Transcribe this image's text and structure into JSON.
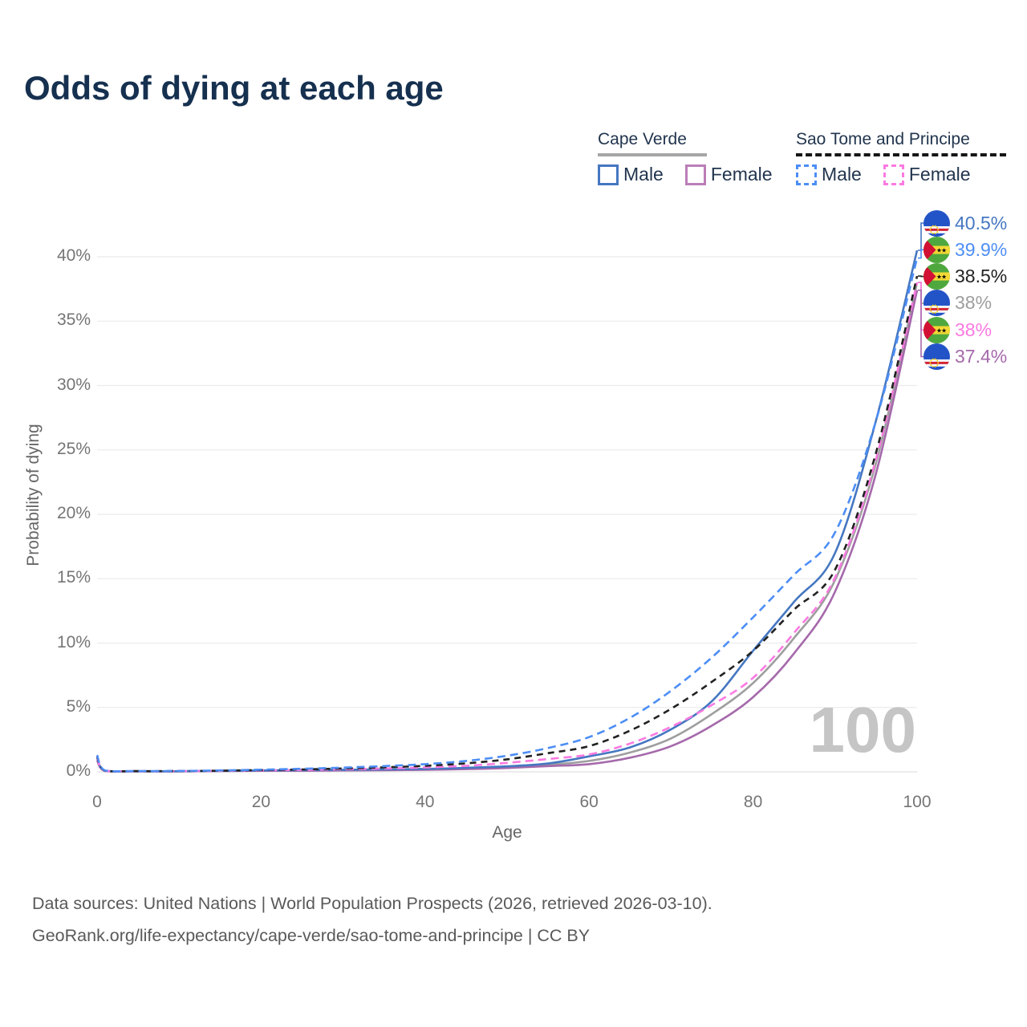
{
  "title": "Odds of dying at each age",
  "watermark": "100",
  "y_axis": {
    "title": "Probability of dying",
    "ticks": [
      "0%",
      "5%",
      "10%",
      "15%",
      "20%",
      "25%",
      "30%",
      "35%",
      "40%"
    ]
  },
  "x_axis": {
    "title": "Age",
    "ticks": [
      "0",
      "20",
      "40",
      "60",
      "80",
      "100"
    ]
  },
  "legend": {
    "groups": [
      {
        "name": "Cape Verde",
        "line_style": "solid",
        "underline_color": "#a6a6a6",
        "items": [
          {
            "label": "Male",
            "box_color": "#4577c1",
            "box_style": "solid"
          },
          {
            "label": "Female",
            "box_color": "#bb7eb8",
            "box_style": "solid"
          }
        ]
      },
      {
        "name": "Sao Tome and Principe",
        "line_style": "dashed",
        "underline_color": "#161616",
        "items": [
          {
            "label": "Male",
            "box_color": "#4d8ef5",
            "box_style": "dashed"
          },
          {
            "label": "Female",
            "box_color": "#fb7ae1",
            "box_style": "dashed"
          }
        ]
      }
    ]
  },
  "end_labels": [
    {
      "series": "cape_verde_male",
      "flag": "cape-verde",
      "value": "40.5%",
      "color": "#4577c1"
    },
    {
      "series": "sao_tome_male",
      "flag": "sao-tome",
      "value": "39.9%",
      "color": "#4d8ef5"
    },
    {
      "series": "sao_tome_total",
      "flag": "sao-tome",
      "value": "38.5%",
      "color": "#222222"
    },
    {
      "series": "cape_verde_total",
      "flag": "cape-verde",
      "value": "38%",
      "color": "#9e9e9e"
    },
    {
      "series": "sao_tome_female",
      "flag": "sao-tome",
      "value": "38%",
      "color": "#fb7ae1"
    },
    {
      "series": "cape_verde_female",
      "flag": "cape-verde",
      "value": "37.4%",
      "color": "#a569ab"
    }
  ],
  "footer": {
    "line1": "Data sources: United Nations | World Population Prospects (2026, retrieved 2026-03-10).",
    "line2": "GeoRank.org/life-expectancy/cape-verde/sao-tome-and-principe | CC BY"
  },
  "chart_data": {
    "type": "line",
    "title": "Odds of dying at each age",
    "xlabel": "Age",
    "ylabel": "Probability of dying",
    "unit": "percent",
    "xlim": [
      0,
      100
    ],
    "ylim": [
      0,
      42
    ],
    "grid": true,
    "legend_position": "top-right",
    "x": [
      0,
      1,
      5,
      10,
      15,
      20,
      25,
      30,
      35,
      40,
      45,
      50,
      55,
      60,
      65,
      70,
      75,
      80,
      85,
      90,
      95,
      100
    ],
    "series": [
      {
        "id": "cape_verde_total",
        "name": "Cape Verde - Both sexes",
        "color": "#9e9e9e",
        "dash": "solid",
        "values": [
          1.0,
          0.07,
          0.045,
          0.045,
          0.07,
          0.09,
          0.11,
          0.14,
          0.16,
          0.2,
          0.26,
          0.37,
          0.55,
          0.85,
          1.5,
          2.6,
          4.5,
          6.9,
          10.4,
          14.9,
          24.0,
          38.0
        ]
      },
      {
        "id": "cape_verde_female",
        "name": "Cape Verde - Female",
        "color": "#a569ab",
        "dash": "solid",
        "values": [
          0.9,
          0.06,
          0.04,
          0.04,
          0.06,
          0.08,
          0.09,
          0.11,
          0.13,
          0.16,
          0.21,
          0.3,
          0.45,
          0.6,
          1.1,
          2.0,
          3.6,
          5.8,
          9.2,
          14.0,
          23.2,
          37.4
        ]
      },
      {
        "id": "cape_verde_male",
        "name": "Cape Verde - Male",
        "color": "#4577c1",
        "dash": "solid",
        "values": [
          1.1,
          0.08,
          0.05,
          0.05,
          0.08,
          0.11,
          0.13,
          0.16,
          0.19,
          0.23,
          0.31,
          0.43,
          0.65,
          1.2,
          1.9,
          3.3,
          5.5,
          9.4,
          13.2,
          17.0,
          27.3,
          40.5
        ]
      },
      {
        "id": "sao_tome_female",
        "name": "Sao Tome and Principe - Female",
        "color": "#fb7ae1",
        "dash": "dashed",
        "values": [
          1.1,
          0.08,
          0.05,
          0.05,
          0.08,
          0.12,
          0.15,
          0.2,
          0.26,
          0.34,
          0.47,
          0.7,
          1.0,
          1.35,
          2.2,
          3.5,
          5.2,
          7.3,
          10.8,
          15.1,
          24.3,
          38.0
        ]
      },
      {
        "id": "sao_tome_total",
        "name": "Sao Tome and Principe - Both sexes",
        "color": "#222222",
        "dash": "dashed",
        "values": [
          1.2,
          0.09,
          0.055,
          0.06,
          0.09,
          0.14,
          0.19,
          0.26,
          0.35,
          0.47,
          0.66,
          0.97,
          1.45,
          2.0,
          3.2,
          4.9,
          7.0,
          9.4,
          12.6,
          15.7,
          24.8,
          38.5
        ]
      },
      {
        "id": "sao_tome_male",
        "name": "Sao Tome and Principe - Male",
        "color": "#4d8ef5",
        "dash": "dashed",
        "values": [
          1.3,
          0.1,
          0.06,
          0.07,
          0.11,
          0.17,
          0.24,
          0.33,
          0.45,
          0.6,
          0.85,
          1.25,
          1.85,
          2.7,
          4.2,
          6.3,
          8.9,
          12.0,
          15.3,
          18.6,
          27.3,
          39.9
        ]
      }
    ]
  }
}
